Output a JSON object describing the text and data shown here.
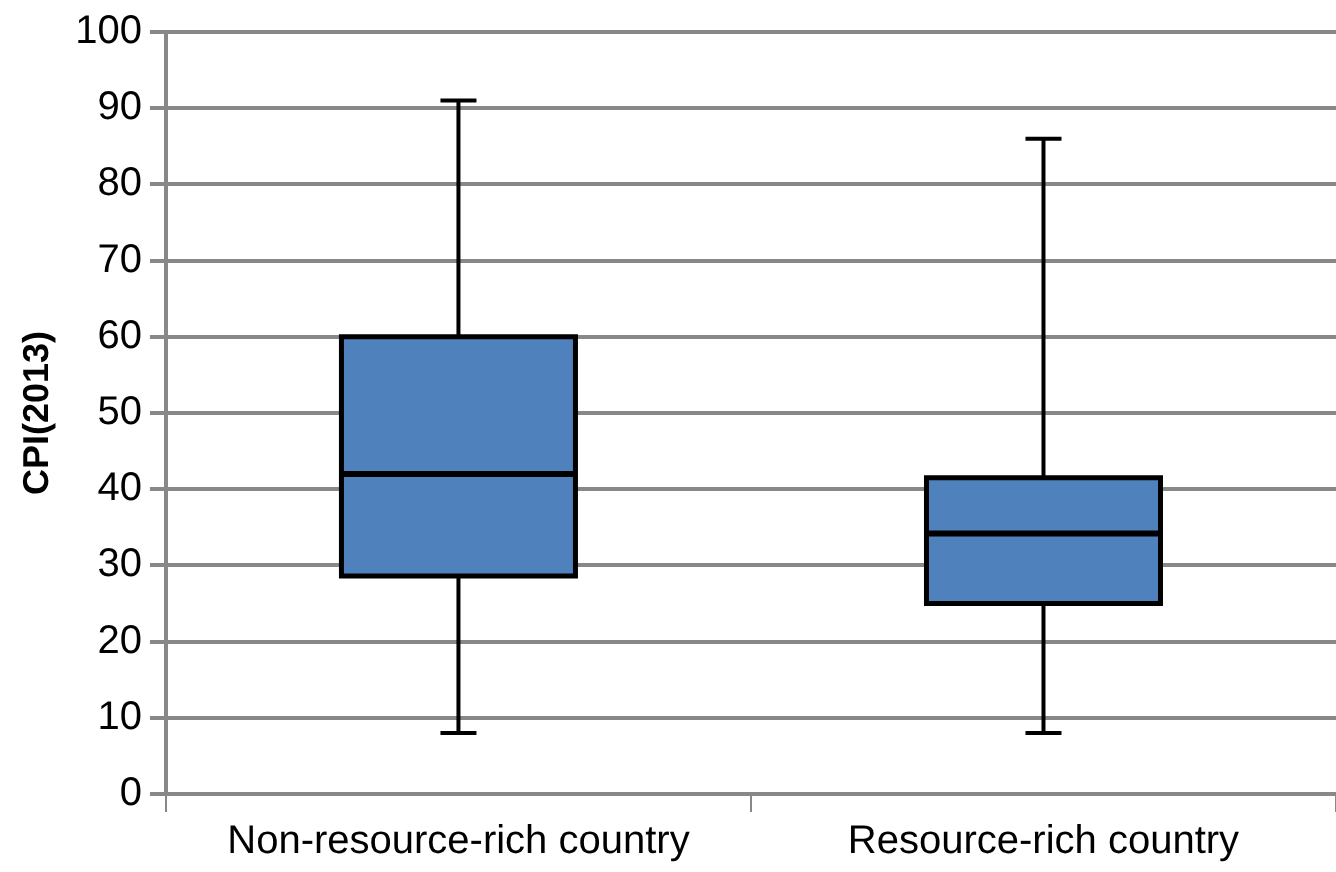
{
  "chart_data": {
    "type": "box",
    "ylabel": "CPI(2013)",
    "categories": [
      "Non-resource-rich country",
      "Resource-rich country"
    ],
    "boxes": [
      {
        "low": 8,
        "q1": 28.6,
        "median": 42,
        "q3": 60,
        "high": 91
      },
      {
        "low": 8,
        "q1": 25,
        "median": 34.2,
        "q3": 41.5,
        "high": 86
      }
    ],
    "color": "#4f81bd",
    "ylim": [
      0,
      100
    ],
    "yticks": [
      0,
      10,
      20,
      30,
      40,
      50,
      60,
      70,
      80,
      90,
      100
    ],
    "grid": "y",
    "legend": false
  }
}
